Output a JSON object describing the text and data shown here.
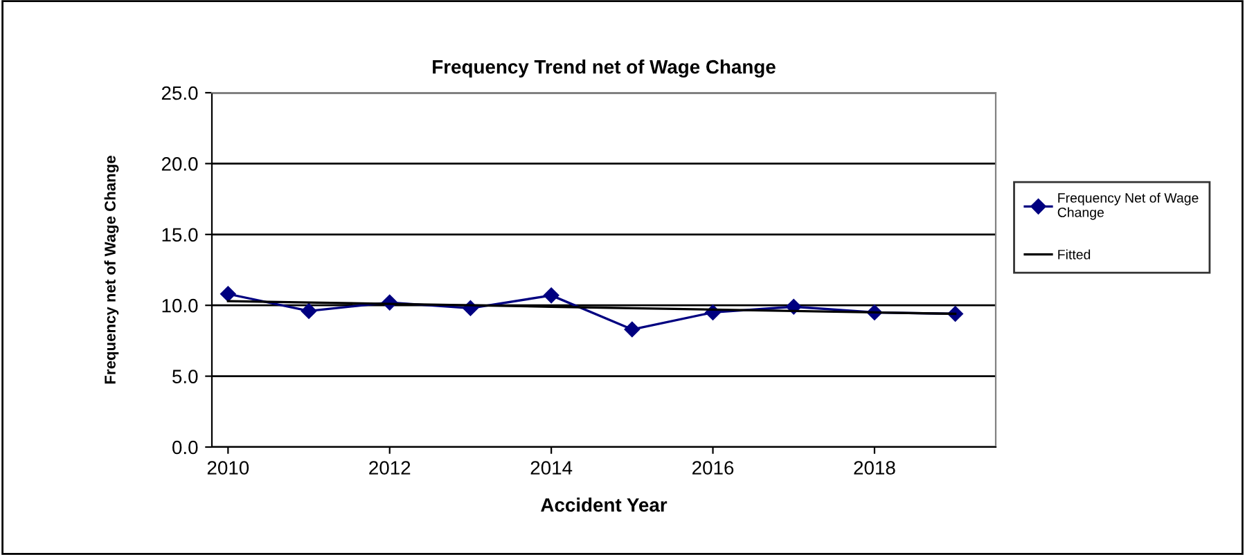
{
  "chart_data": {
    "type": "line",
    "title": "Frequency Trend net of Wage Change",
    "xlabel": "Accident Year",
    "ylabel": "Frequency net of Wage Change",
    "x": [
      2010,
      2011,
      2012,
      2013,
      2014,
      2015,
      2016,
      2017,
      2018,
      2019
    ],
    "series": [
      {
        "name": "Frequency Net of Wage Change",
        "color": "#000080",
        "marker": "diamond",
        "values": [
          10.8,
          9.6,
          10.2,
          9.8,
          10.7,
          8.3,
          9.5,
          9.9,
          9.5,
          9.4
        ]
      },
      {
        "name": "Fitted",
        "color": "#000000",
        "marker": "none",
        "values": [
          10.3,
          10.2,
          10.1,
          10.0,
          9.9,
          9.8,
          9.7,
          9.6,
          9.5,
          9.4
        ]
      }
    ],
    "xlim": [
      2009.8,
      2019.5
    ],
    "xticks": [
      2010,
      2012,
      2014,
      2016,
      2018
    ],
    "ylim": [
      0,
      25
    ],
    "yticks": [
      {
        "value": 0,
        "label": "0.0"
      },
      {
        "value": 5,
        "label": "5.0"
      },
      {
        "value": 10,
        "label": "10.0"
      },
      {
        "value": 15,
        "label": "15.0"
      },
      {
        "value": 20,
        "label": "20.0"
      },
      {
        "value": 25,
        "label": "25.0"
      }
    ],
    "grid": "y",
    "legend": "right"
  }
}
